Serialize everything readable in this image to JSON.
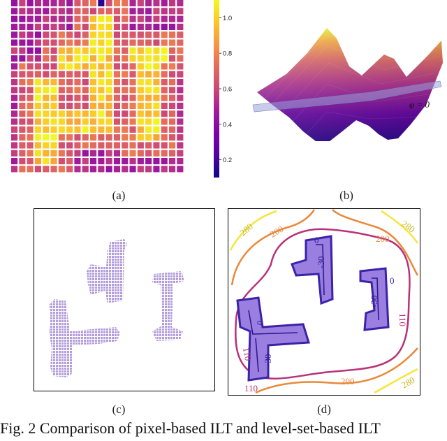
{
  "figure": {
    "caption": "Fig. 2 Comparison of pixel-based ILT and level-set-based ILT",
    "subfigure_labels": [
      "(a)",
      "(b)",
      "(c)",
      "(d)"
    ]
  },
  "panel_a": {
    "colormap": "plasma",
    "grid_size": 22,
    "colorbar_ticks": [
      "0.2",
      "0.4",
      "0.6",
      "0.8",
      "1.0"
    ],
    "colorbar_range": [
      0.1,
      1.1
    ]
  },
  "panel_b": {
    "plane_label": "φ = 0"
  },
  "panel_c": {
    "pattern_color": "#b39ddb"
  },
  "panel_d": {
    "contour_labels": [
      "0",
      "-30",
      "0",
      "-30",
      "0",
      "-30",
      "110",
      "110",
      "110",
      "200",
      "200",
      "200",
      "280",
      "280",
      "280"
    ]
  },
  "chart_data": [
    {
      "type": "heatmap",
      "title": "",
      "colorbar": {
        "ticks": [
          0.2,
          0.4,
          0.6,
          0.8,
          1.0
        ],
        "range": [
          0.1,
          1.1
        ]
      },
      "description_values": "22x22 pixel grid; high values (~0.8–1.05) inside pattern regions forming two T-shapes and one I-shape, low values (~0.2–0.45) elsewhere"
    },
    {
      "type": "heatmap",
      "title": "",
      "contour_levels": [
        -30,
        0,
        110,
        200,
        280
      ],
      "level_colors": {
        "-30": "#2e1a8f",
        "0": "#3b23a8",
        "110": "#b8327a",
        "200": "#e9893a",
        "280": "#f5e63a"
      }
    }
  ]
}
